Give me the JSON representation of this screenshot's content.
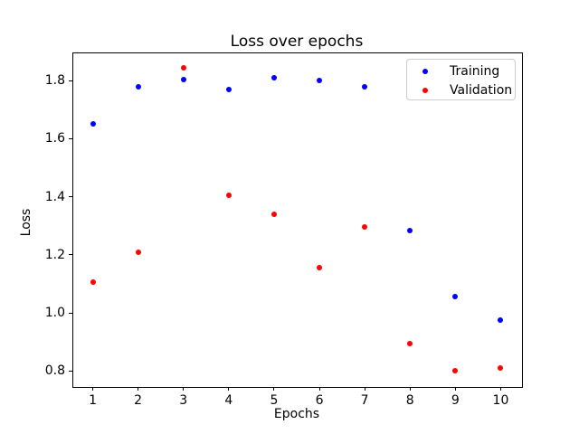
{
  "chart_data": {
    "type": "scatter",
    "title": "Loss over epochs",
    "xlabel": "Epochs",
    "ylabel": "Loss",
    "x": [
      1,
      2,
      3,
      4,
      5,
      6,
      7,
      8,
      9,
      10
    ],
    "series": [
      {
        "name": "Training",
        "color": "#0000ff",
        "marker": "dot",
        "values": [
          1.65,
          1.78,
          1.805,
          1.77,
          1.81,
          1.8,
          1.78,
          1.285,
          1.055,
          0.975
        ]
      },
      {
        "name": "Validation",
        "color": "#ff0000",
        "marker": "dot",
        "values": [
          1.105,
          1.21,
          1.845,
          1.405,
          1.34,
          1.155,
          1.295,
          0.895,
          0.8,
          0.81
        ]
      }
    ],
    "xticks": [
      1,
      2,
      3,
      4,
      5,
      6,
      7,
      8,
      9,
      10
    ],
    "yticks": [
      0.8,
      1.0,
      1.2,
      1.4,
      1.6,
      1.8
    ],
    "xlim": [
      0.55,
      10.45
    ],
    "ylim": [
      0.748,
      1.897
    ],
    "grid": false,
    "legend": {
      "position": "upper right",
      "entries": [
        "Training",
        "Validation"
      ]
    },
    "colors": {
      "axes_edge": "#000000",
      "legend_border": "#cccccc",
      "background": "#ffffff"
    }
  }
}
